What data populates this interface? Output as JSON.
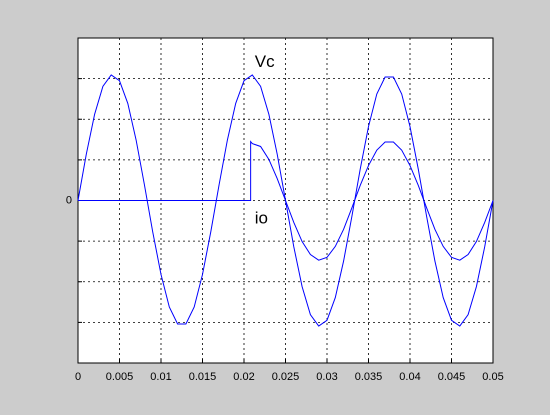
{
  "chart_data": {
    "type": "line",
    "series": [
      {
        "name": "Vc",
        "color": "#0000ff",
        "x": [
          0,
          0.001,
          0.002,
          0.003,
          0.004,
          0.005,
          0.006,
          0.007,
          0.008,
          0.009,
          0.01,
          0.011,
          0.012,
          0.013,
          0.014,
          0.015,
          0.016,
          0.017,
          0.018,
          0.019,
          0.02,
          0.021,
          0.022,
          0.023,
          0.024,
          0.025,
          0.026,
          0.027,
          0.028,
          0.029,
          0.03,
          0.031,
          0.032,
          0.033,
          0.034,
          0.035,
          0.036,
          0.037,
          0.038,
          0.039,
          0.04,
          0.041,
          0.042,
          0.043,
          0.044,
          0.045,
          0.046,
          0.047,
          0.048,
          0.049,
          0.05
        ],
        "values": [
          0,
          1.14,
          2.12,
          2.81,
          3.09,
          2.95,
          2.39,
          1.49,
          0.39,
          -0.77,
          -1.82,
          -2.62,
          -3.04,
          -3.04,
          -2.62,
          -1.82,
          -0.77,
          0.39,
          1.49,
          2.39,
          2.95,
          3.09,
          2.81,
          2.12,
          1.14,
          0,
          -1.14,
          -2.12,
          -2.81,
          -3.09,
          -2.95,
          -2.39,
          -1.49,
          -0.39,
          0.77,
          1.82,
          2.62,
          3.04,
          3.04,
          2.62,
          1.82,
          0.77,
          -0.39,
          -1.49,
          -2.39,
          -2.95,
          -3.09,
          -2.81,
          -2.12,
          -1.14,
          0
        ]
      },
      {
        "name": "io",
        "color": "#0000ff",
        "x": [
          0,
          0.0208,
          0.0208,
          0.021,
          0.022,
          0.023,
          0.024,
          0.025,
          0.026,
          0.027,
          0.028,
          0.029,
          0.03,
          0.031,
          0.032,
          0.033,
          0.034,
          0.035,
          0.036,
          0.037,
          0.038,
          0.039,
          0.04,
          0.041,
          0.042,
          0.043,
          0.044,
          0.045,
          0.046,
          0.047,
          0.048,
          0.049,
          0.05
        ],
        "values": [
          0,
          0,
          1.45,
          1.4,
          1.33,
          1.01,
          0.54,
          0,
          -0.54,
          -1.01,
          -1.33,
          -1.47,
          -1.4,
          -1.13,
          -0.71,
          -0.18,
          0.37,
          0.86,
          1.24,
          1.44,
          1.44,
          1.24,
          0.86,
          0.37,
          -0.18,
          -0.71,
          -1.13,
          -1.4,
          -1.47,
          -1.33,
          -1.01,
          -0.54,
          0
        ]
      }
    ],
    "xlim": [
      0,
      0.05
    ],
    "xticks": [
      0,
      0.005,
      0.01,
      0.015,
      0.02,
      0.025,
      0.03,
      0.035,
      0.04,
      0.045,
      0.05
    ],
    "ylim": [
      -4,
      4
    ],
    "yticks": [
      {
        "value": -3,
        "label": null
      },
      {
        "value": -2,
        "label": null
      },
      {
        "value": -1,
        "label": null
      },
      0,
      {
        "value": 1,
        "label": null
      },
      {
        "value": 2,
        "label": null
      },
      {
        "value": 3,
        "label": null
      }
    ],
    "grid": true
  }
}
